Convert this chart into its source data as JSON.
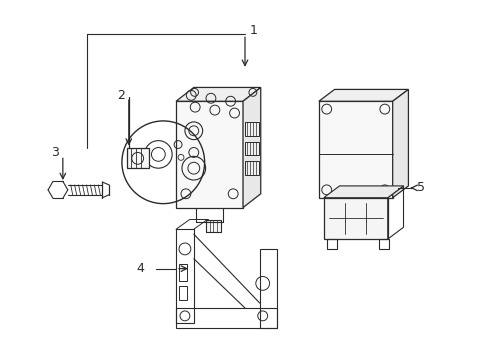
{
  "bg_color": "#ffffff",
  "line_color": "#2a2a2a",
  "label_color": "#000000",
  "figsize": [
    4.89,
    3.6
  ],
  "dpi": 100
}
